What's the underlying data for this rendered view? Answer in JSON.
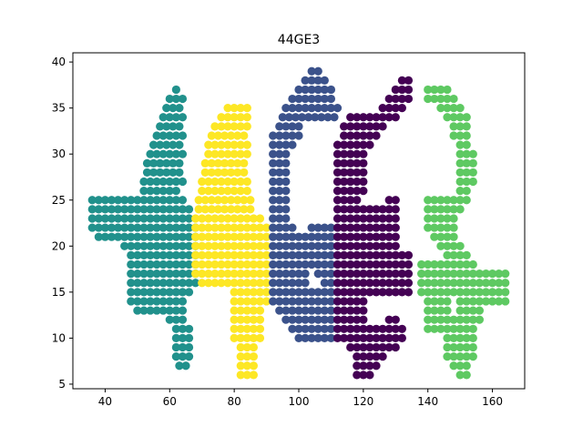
{
  "chart_data": {
    "type": "scatter",
    "title": "44GE3",
    "xlabel": "",
    "ylabel": "",
    "xlim": [
      30,
      170
    ],
    "ylim": [
      4.5,
      41
    ],
    "xticks": [
      40,
      60,
      80,
      100,
      120,
      140,
      160
    ],
    "yticks": [
      5,
      10,
      15,
      20,
      25,
      30,
      35,
      40
    ],
    "grid": false,
    "legend": "none",
    "series": [
      {
        "color": "#21918c",
        "runs": [
          [
            36,
            23,
            2,
            29
          ],
          [
            36,
            24,
            2,
            28
          ],
          [
            36,
            24,
            2,
            27
          ],
          [
            52,
            26,
            2,
            63
          ],
          [
            36,
            25,
            2,
            65
          ],
          [
            36,
            24,
            2,
            66
          ],
          [
            36,
            23,
            2,
            67
          ],
          [
            36,
            22,
            2,
            68
          ],
          [
            38,
            21,
            2,
            68
          ],
          [
            46,
            20,
            2,
            68
          ],
          [
            48,
            19,
            2,
            68
          ],
          [
            48,
            18,
            2,
            68
          ],
          [
            48,
            17,
            2,
            68
          ],
          [
            48,
            16,
            2,
            68
          ],
          [
            48,
            15,
            2,
            66
          ],
          [
            48,
            14,
            2,
            65
          ],
          [
            50,
            13,
            2,
            64
          ],
          [
            62,
            37,
            2,
            62
          ],
          [
            60,
            36,
            2,
            64
          ],
          [
            59,
            35,
            2,
            64
          ],
          [
            58,
            34,
            2,
            64
          ],
          [
            57,
            33,
            2,
            64
          ],
          [
            56,
            32,
            2,
            64
          ],
          [
            55,
            31,
            2,
            64
          ],
          [
            54,
            30,
            2,
            64
          ],
          [
            53,
            29,
            2,
            64
          ],
          [
            53,
            28,
            2,
            64
          ],
          [
            52,
            27,
            2,
            64
          ],
          [
            60,
            12,
            2,
            64
          ],
          [
            62,
            11,
            2,
            66
          ],
          [
            62,
            10,
            2,
            66
          ],
          [
            62,
            9,
            2,
            66
          ],
          [
            62,
            8,
            2,
            66
          ],
          [
            63,
            7,
            2,
            65
          ]
        ]
      },
      {
        "color": "#fde725",
        "runs": [
          [
            78,
            35,
            2,
            84
          ],
          [
            76,
            34,
            2,
            84
          ],
          [
            74,
            33,
            2,
            84
          ],
          [
            73,
            32,
            2,
            84
          ],
          [
            72,
            31,
            2,
            84
          ],
          [
            72,
            30,
            2,
            84
          ],
          [
            71,
            29,
            2,
            84
          ],
          [
            71,
            28,
            2,
            84
          ],
          [
            70,
            27,
            2,
            84
          ],
          [
            70,
            26,
            2,
            84
          ],
          [
            69,
            25,
            2,
            85
          ],
          [
            69,
            24,
            2,
            86
          ],
          [
            68,
            23,
            2,
            88
          ],
          [
            68,
            22,
            2,
            90
          ],
          [
            68,
            21,
            2,
            90
          ],
          [
            68,
            20,
            2,
            90
          ],
          [
            68,
            19,
            2,
            90
          ],
          [
            68,
            18,
            2,
            90
          ],
          [
            68,
            17,
            2,
            90
          ],
          [
            70,
            16,
            2,
            90
          ],
          [
            80,
            15,
            2,
            90
          ],
          [
            80,
            14,
            2,
            90
          ],
          [
            80,
            13,
            2,
            88
          ],
          [
            80,
            12,
            2,
            88
          ],
          [
            80,
            11,
            2,
            88
          ],
          [
            80,
            10,
            2,
            88
          ],
          [
            82,
            9,
            2,
            86
          ],
          [
            82,
            8,
            2,
            86
          ],
          [
            82,
            7,
            2,
            86
          ],
          [
            82,
            6,
            2,
            86
          ]
        ]
      },
      {
        "color": "#3b528b",
        "runs": [
          [
            104,
            39,
            2,
            106
          ],
          [
            102,
            38,
            2,
            108
          ],
          [
            100,
            37,
            2,
            110
          ],
          [
            98,
            36,
            2,
            111
          ],
          [
            96,
            35,
            2,
            112
          ],
          [
            95,
            34,
            2,
            112
          ],
          [
            94,
            33,
            2,
            101
          ],
          [
            92,
            32,
            2,
            100
          ],
          [
            92,
            31,
            2,
            98
          ],
          [
            92,
            30,
            2,
            96
          ],
          [
            92,
            29,
            2,
            96
          ],
          [
            92,
            28,
            2,
            96
          ],
          [
            92,
            27,
            2,
            96
          ],
          [
            92,
            26,
            2,
            96
          ],
          [
            92,
            25,
            2,
            96
          ],
          [
            92,
            24,
            2,
            96
          ],
          [
            92,
            23,
            2,
            96
          ],
          [
            92,
            22,
            2,
            98
          ],
          [
            104,
            22,
            2,
            110
          ],
          [
            92,
            21,
            2,
            110
          ],
          [
            92,
            20,
            2,
            110
          ],
          [
            92,
            19,
            2,
            110
          ],
          [
            92,
            18,
            2,
            110
          ],
          [
            92,
            17,
            2,
            102
          ],
          [
            106,
            17,
            2,
            110
          ],
          [
            92,
            16,
            2,
            102
          ],
          [
            108,
            16,
            2,
            110
          ],
          [
            92,
            15,
            2,
            110
          ],
          [
            92,
            14,
            2,
            110
          ],
          [
            94,
            13,
            2,
            110
          ],
          [
            96,
            12,
            2,
            110
          ],
          [
            98,
            11,
            2,
            110
          ],
          [
            100,
            10,
            2,
            110
          ]
        ]
      },
      {
        "color": "#440154",
        "runs": [
          [
            132,
            38,
            2,
            134
          ],
          [
            130,
            37,
            2,
            134
          ],
          [
            128,
            36,
            2,
            134
          ],
          [
            126,
            35,
            2,
            132
          ],
          [
            116,
            34,
            2,
            130
          ],
          [
            114,
            33,
            2,
            126
          ],
          [
            114,
            32,
            2,
            124
          ],
          [
            112,
            31,
            2,
            122
          ],
          [
            112,
            30,
            2,
            120
          ],
          [
            112,
            29,
            2,
            120
          ],
          [
            112,
            28,
            2,
            120
          ],
          [
            112,
            27,
            2,
            120
          ],
          [
            112,
            26,
            2,
            120
          ],
          [
            112,
            25,
            2,
            118
          ],
          [
            128,
            25,
            2,
            130
          ],
          [
            112,
            24,
            2,
            130
          ],
          [
            112,
            23,
            2,
            130
          ],
          [
            112,
            22,
            2,
            130
          ],
          [
            112,
            21,
            2,
            130
          ],
          [
            112,
            20,
            2,
            130
          ],
          [
            112,
            19,
            2,
            134
          ],
          [
            112,
            18,
            2,
            134
          ],
          [
            112,
            17,
            2,
            134
          ],
          [
            112,
            16,
            2,
            134
          ],
          [
            112,
            15,
            2,
            134
          ],
          [
            112,
            14,
            2,
            120
          ],
          [
            112,
            13,
            2,
            120
          ],
          [
            112,
            12,
            2,
            120
          ],
          [
            128,
            12,
            2,
            130
          ],
          [
            112,
            11,
            2,
            132
          ],
          [
            112,
            10,
            2,
            132
          ],
          [
            116,
            9,
            2,
            130
          ],
          [
            118,
            8,
            2,
            126
          ],
          [
            118,
            7,
            2,
            124
          ],
          [
            118,
            6,
            2,
            122
          ]
        ]
      },
      {
        "color": "#5ec962",
        "runs": [
          [
            140,
            37,
            2,
            146
          ],
          [
            140,
            36,
            2,
            148
          ],
          [
            144,
            35,
            2,
            150
          ],
          [
            146,
            34,
            2,
            152
          ],
          [
            148,
            33,
            2,
            152
          ],
          [
            148,
            32,
            2,
            152
          ],
          [
            150,
            31,
            2,
            152
          ],
          [
            150,
            30,
            2,
            154
          ],
          [
            150,
            29,
            2,
            154
          ],
          [
            150,
            28,
            2,
            154
          ],
          [
            150,
            27,
            2,
            154
          ],
          [
            150,
            26,
            2,
            152
          ],
          [
            140,
            25,
            2,
            152
          ],
          [
            140,
            24,
            2,
            150
          ],
          [
            140,
            23,
            2,
            148
          ],
          [
            140,
            22,
            2,
            148
          ],
          [
            142,
            21,
            2,
            148
          ],
          [
            144,
            20,
            2,
            150
          ],
          [
            146,
            19,
            2,
            152
          ],
          [
            138,
            18,
            2,
            154
          ],
          [
            138,
            17,
            2,
            164
          ],
          [
            138,
            16,
            2,
            164
          ],
          [
            138,
            15,
            2,
            164
          ],
          [
            140,
            14,
            2,
            146
          ],
          [
            150,
            14,
            2,
            164
          ],
          [
            140,
            13,
            2,
            146
          ],
          [
            150,
            13,
            2,
            156
          ],
          [
            140,
            12,
            2,
            146
          ],
          [
            148,
            12,
            2,
            156
          ],
          [
            140,
            11,
            2,
            142
          ],
          [
            144,
            11,
            2,
            154
          ],
          [
            146,
            10,
            2,
            154
          ],
          [
            146,
            9,
            2,
            154
          ],
          [
            146,
            8,
            2,
            154
          ],
          [
            148,
            7,
            2,
            152
          ],
          [
            150,
            6,
            2,
            152
          ]
        ]
      }
    ]
  }
}
